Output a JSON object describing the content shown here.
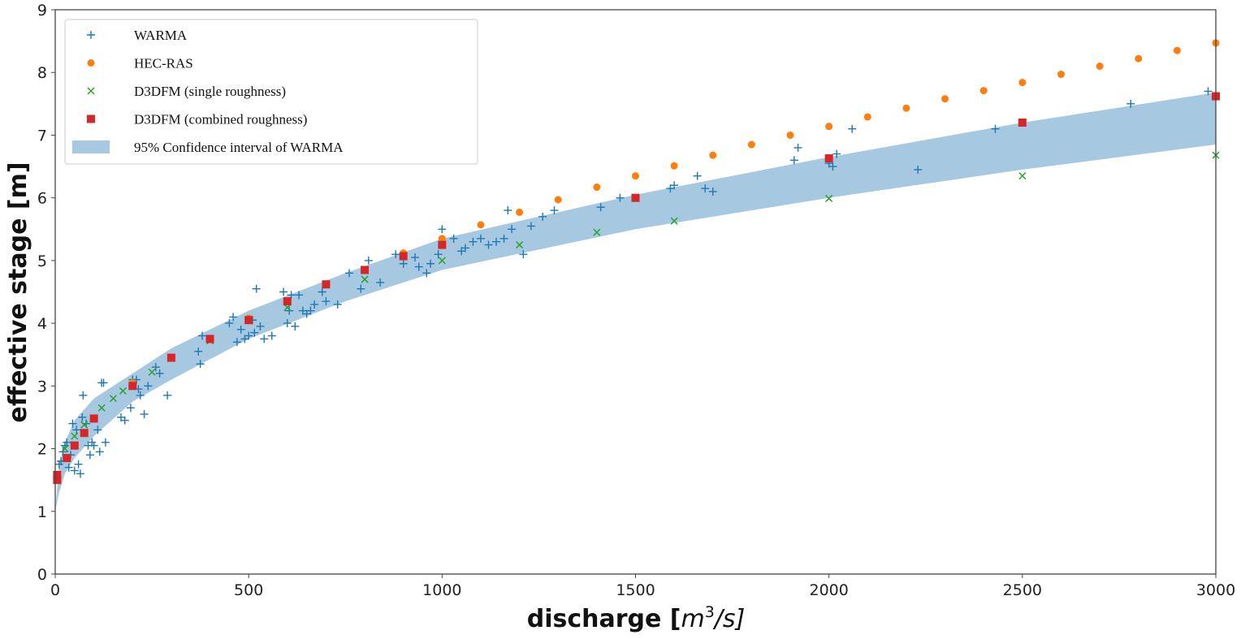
{
  "chart_data": {
    "type": "scatter",
    "xlabel_main": "discharge [",
    "xlabel_unit": "m",
    "xlabel_sup": "3",
    "xlabel_end": "/s]",
    "ylabel": "effective stage [m]",
    "xlim": [
      0,
      3000
    ],
    "ylim": [
      0,
      9
    ],
    "xticks": [
      "0",
      "500",
      "1000",
      "1500",
      "2000",
      "2500",
      "3000"
    ],
    "yticks": [
      "0",
      "1",
      "2",
      "3",
      "4",
      "5",
      "6",
      "7",
      "8",
      "9"
    ],
    "legend_position": "top-left",
    "colors": {
      "warma": "#1f77b4",
      "hecras": "#ff7f0e",
      "single": "#2ca02c",
      "combined": "#d62728",
      "band": "#a6c8e0"
    },
    "legend": [
      "WARMA",
      "HEC-RAS",
      "D3DFM (single roughness)",
      "D3DFM (combined roughness)",
      "95% Confidence interval of WARMA"
    ],
    "band": {
      "name": "95% Confidence interval of WARMA",
      "x": [
        0,
        10,
        25,
        50,
        100,
        200,
        300,
        500,
        750,
        1000,
        1500,
        2000,
        2500,
        3000
      ],
      "upper": [
        1.0,
        1.75,
        2.1,
        2.45,
        2.8,
        3.2,
        3.6,
        4.2,
        4.8,
        5.35,
        6.05,
        6.65,
        7.2,
        7.68
      ],
      "lower": [
        1.0,
        1.3,
        1.6,
        1.85,
        2.2,
        2.75,
        3.1,
        3.75,
        4.35,
        4.85,
        5.5,
        6.0,
        6.45,
        6.85
      ]
    },
    "series": [
      {
        "name": "WARMA",
        "marker": "plus",
        "points": [
          [
            10,
            1.75
          ],
          [
            15,
            1.8
          ],
          [
            20,
            1.95
          ],
          [
            25,
            2.05
          ],
          [
            30,
            2.1
          ],
          [
            35,
            1.7
          ],
          [
            40,
            1.9
          ],
          [
            45,
            2.4
          ],
          [
            50,
            1.65
          ],
          [
            55,
            2.3
          ],
          [
            60,
            1.75
          ],
          [
            65,
            1.6
          ],
          [
            70,
            2.5
          ],
          [
            72,
            2.85
          ],
          [
            80,
            2.4
          ],
          [
            85,
            2.05
          ],
          [
            90,
            1.9
          ],
          [
            95,
            2.1
          ],
          [
            100,
            2.05
          ],
          [
            110,
            2.3
          ],
          [
            115,
            1.95
          ],
          [
            120,
            3.05
          ],
          [
            125,
            3.05
          ],
          [
            130,
            2.1
          ],
          [
            170,
            2.5
          ],
          [
            180,
            2.45
          ],
          [
            195,
            2.65
          ],
          [
            200,
            3.1
          ],
          [
            210,
            3.1
          ],
          [
            215,
            2.95
          ],
          [
            220,
            2.85
          ],
          [
            230,
            2.55
          ],
          [
            240,
            3.0
          ],
          [
            260,
            3.3
          ],
          [
            270,
            3.2
          ],
          [
            290,
            2.85
          ],
          [
            370,
            3.55
          ],
          [
            375,
            3.35
          ],
          [
            380,
            3.8
          ],
          [
            450,
            4.0
          ],
          [
            460,
            4.1
          ],
          [
            470,
            3.7
          ],
          [
            480,
            3.9
          ],
          [
            490,
            3.75
          ],
          [
            500,
            3.8
          ],
          [
            510,
            4.05
          ],
          [
            515,
            3.85
          ],
          [
            520,
            4.55
          ],
          [
            530,
            3.95
          ],
          [
            540,
            3.75
          ],
          [
            560,
            3.8
          ],
          [
            590,
            4.5
          ],
          [
            600,
            4.0
          ],
          [
            605,
            4.2
          ],
          [
            610,
            4.45
          ],
          [
            620,
            3.95
          ],
          [
            630,
            4.45
          ],
          [
            640,
            4.2
          ],
          [
            650,
            4.15
          ],
          [
            660,
            4.2
          ],
          [
            670,
            4.3
          ],
          [
            690,
            4.5
          ],
          [
            700,
            4.35
          ],
          [
            730,
            4.3
          ],
          [
            760,
            4.8
          ],
          [
            790,
            4.55
          ],
          [
            810,
            5.0
          ],
          [
            840,
            4.65
          ],
          [
            880,
            5.1
          ],
          [
            900,
            4.95
          ],
          [
            930,
            5.05
          ],
          [
            940,
            4.9
          ],
          [
            960,
            4.8
          ],
          [
            970,
            4.95
          ],
          [
            990,
            5.1
          ],
          [
            1000,
            5.5
          ],
          [
            1030,
            5.35
          ],
          [
            1050,
            5.15
          ],
          [
            1060,
            5.2
          ],
          [
            1080,
            5.3
          ],
          [
            1100,
            5.35
          ],
          [
            1120,
            5.25
          ],
          [
            1140,
            5.3
          ],
          [
            1160,
            5.35
          ],
          [
            1170,
            5.8
          ],
          [
            1180,
            5.5
          ],
          [
            1210,
            5.1
          ],
          [
            1230,
            5.55
          ],
          [
            1260,
            5.7
          ],
          [
            1290,
            5.8
          ],
          [
            1410,
            5.85
          ],
          [
            1460,
            6.0
          ],
          [
            1590,
            6.15
          ],
          [
            1600,
            6.2
          ],
          [
            1660,
            6.35
          ],
          [
            1680,
            6.15
          ],
          [
            1700,
            6.1
          ],
          [
            1910,
            6.6
          ],
          [
            1920,
            6.8
          ],
          [
            2000,
            6.55
          ],
          [
            2010,
            6.5
          ],
          [
            2020,
            6.7
          ],
          [
            2060,
            7.1
          ],
          [
            2230,
            6.45
          ],
          [
            2430,
            7.1
          ],
          [
            2780,
            7.5
          ],
          [
            2980,
            7.7
          ]
        ]
      },
      {
        "name": "HEC-RAS",
        "marker": "circle",
        "points": [
          [
            200,
            3.05
          ],
          [
            400,
            3.75
          ],
          [
            500,
            4.08
          ],
          [
            900,
            5.12
          ],
          [
            1000,
            5.35
          ],
          [
            1100,
            5.57
          ],
          [
            1200,
            5.77
          ],
          [
            1300,
            5.97
          ],
          [
            1400,
            6.17
          ],
          [
            1500,
            6.35
          ],
          [
            1600,
            6.51
          ],
          [
            1700,
            6.68
          ],
          [
            1800,
            6.85
          ],
          [
            1900,
            7.0
          ],
          [
            2000,
            7.14
          ],
          [
            2100,
            7.29
          ],
          [
            2200,
            7.43
          ],
          [
            2300,
            7.58
          ],
          [
            2400,
            7.71
          ],
          [
            2500,
            7.84
          ],
          [
            2600,
            7.97
          ],
          [
            2700,
            8.1
          ],
          [
            2800,
            8.22
          ],
          [
            2900,
            8.35
          ],
          [
            3000,
            8.47
          ]
        ]
      },
      {
        "name": "D3DFM (single roughness)",
        "marker": "x",
        "points": [
          [
            25,
            2.0
          ],
          [
            50,
            2.2
          ],
          [
            75,
            2.38
          ],
          [
            120,
            2.65
          ],
          [
            150,
            2.8
          ],
          [
            175,
            2.92
          ],
          [
            250,
            3.22
          ],
          [
            400,
            3.72
          ],
          [
            600,
            4.25
          ],
          [
            800,
            4.7
          ],
          [
            1000,
            5.0
          ],
          [
            1200,
            5.25
          ],
          [
            1400,
            5.45
          ],
          [
            1600,
            5.63
          ],
          [
            2000,
            5.99
          ],
          [
            2500,
            6.35
          ],
          [
            3000,
            6.68
          ]
        ]
      },
      {
        "name": "D3DFM (combined roughness)",
        "marker": "square",
        "points": [
          [
            5,
            1.5
          ],
          [
            5,
            1.58
          ],
          [
            30,
            1.85
          ],
          [
            50,
            2.05
          ],
          [
            75,
            2.25
          ],
          [
            100,
            2.48
          ],
          [
            200,
            3.0
          ],
          [
            300,
            3.45
          ],
          [
            400,
            3.75
          ],
          [
            500,
            4.05
          ],
          [
            600,
            4.35
          ],
          [
            700,
            4.62
          ],
          [
            800,
            4.85
          ],
          [
            900,
            5.07
          ],
          [
            1000,
            5.25
          ],
          [
            1500,
            6.0
          ],
          [
            2000,
            6.63
          ],
          [
            2500,
            7.2
          ],
          [
            3000,
            7.62
          ]
        ]
      }
    ]
  }
}
